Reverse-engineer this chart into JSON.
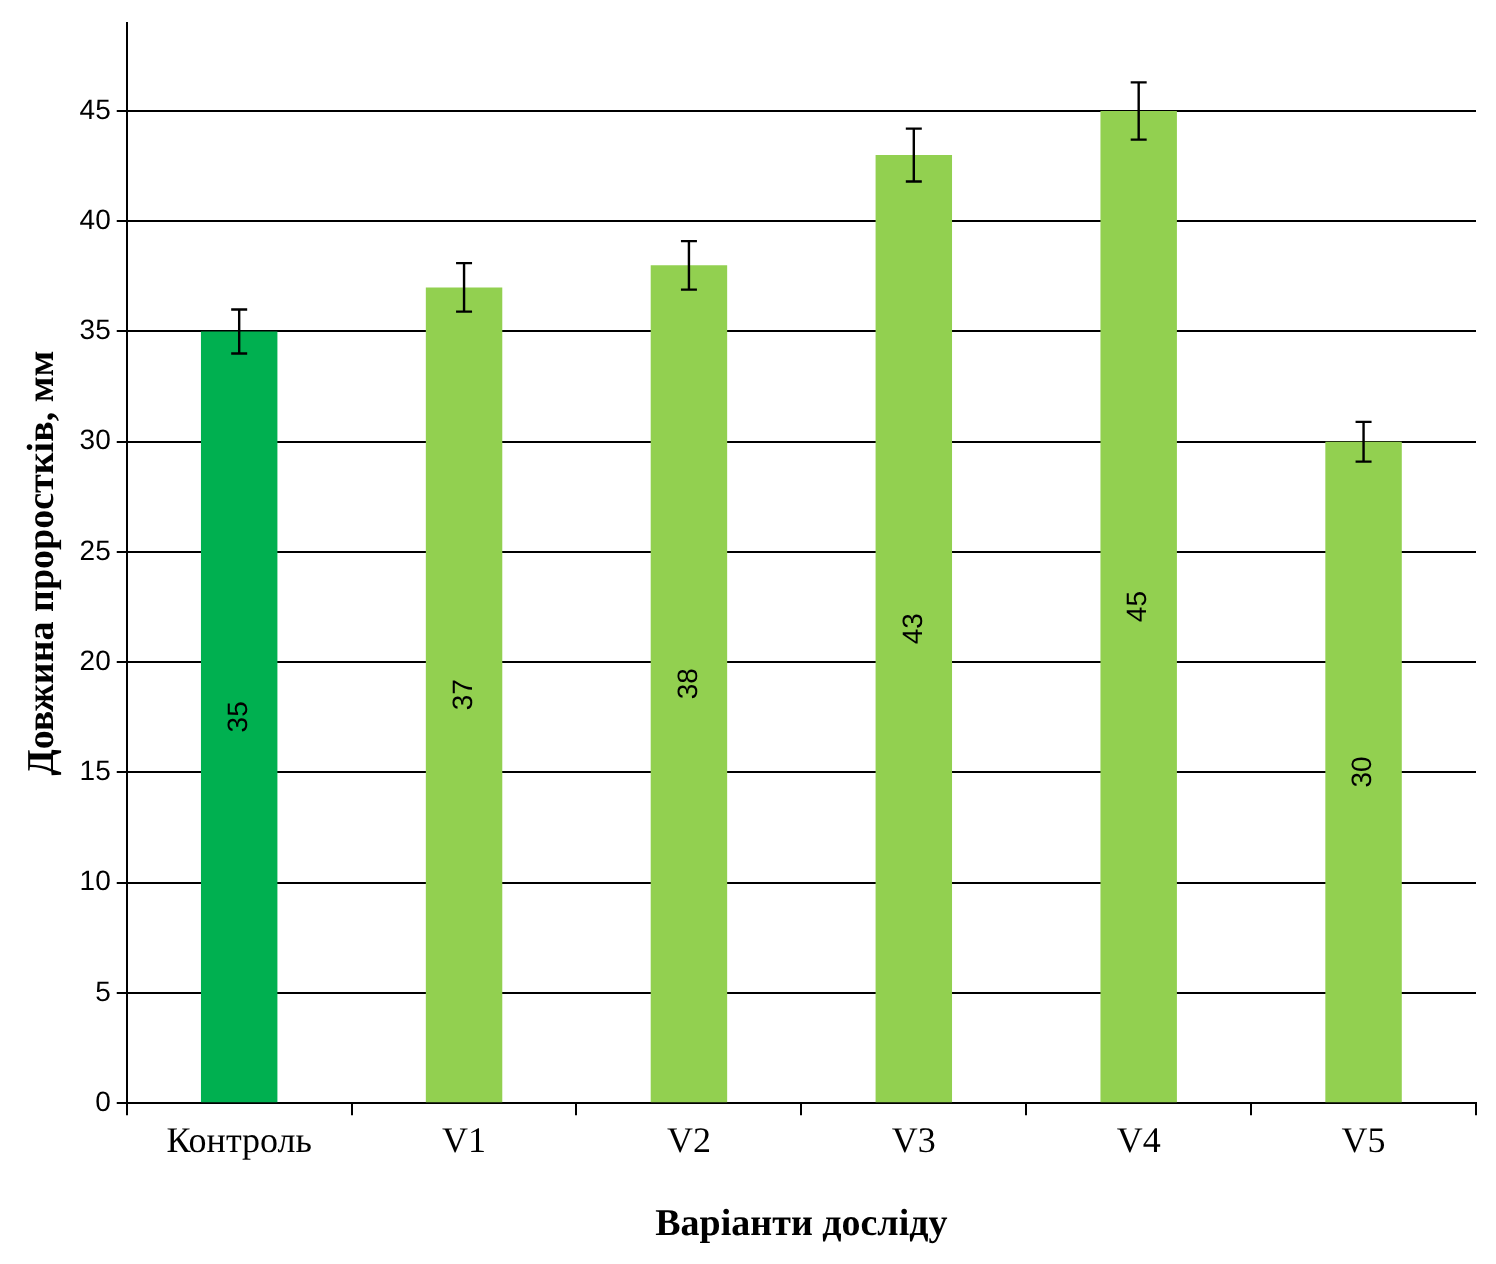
{
  "chart_data": {
    "type": "bar",
    "xlabel": "Варіанти досліду",
    "ylabel": "Довжина проростків, мм",
    "categories": [
      "Контроль",
      "V1",
      "V2",
      "V3",
      "V4",
      "V5"
    ],
    "values": [
      35,
      37,
      38,
      43,
      45,
      30
    ],
    "colors": [
      "#00b050",
      "#92d050",
      "#92d050",
      "#92d050",
      "#92d050",
      "#92d050"
    ],
    "errors": [
      1.0,
      1.1,
      1.1,
      1.2,
      1.3,
      0.9
    ],
    "ylim": [
      0,
      49
    ],
    "yticks": [
      0,
      5,
      10,
      15,
      20,
      25,
      30,
      35,
      40,
      45
    ],
    "grid": "y",
    "data_labels": true,
    "legend": false
  }
}
